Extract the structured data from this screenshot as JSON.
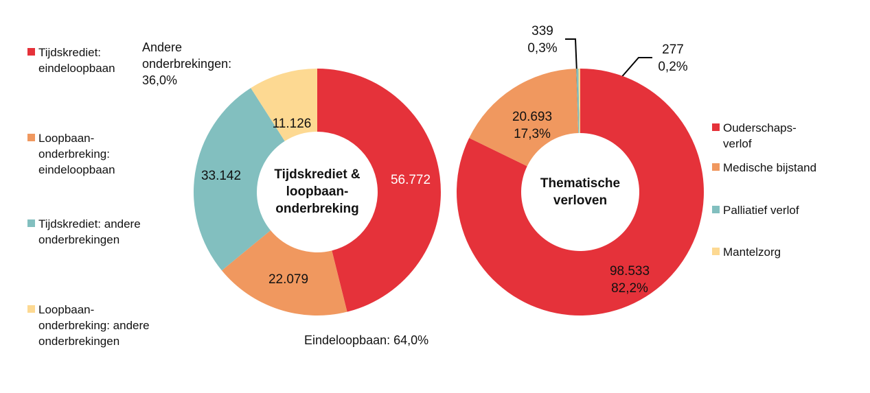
{
  "chart_data": [
    {
      "type": "pie",
      "center_label": "Tijdskrediet & loopbaan-onderbreking",
      "legend": "left",
      "categories": [
        "Tijdskrediet: eindeloopbaan",
        "Loopbaan-onderbreking: eindeloopbaan",
        "Tijdskrediet: andere onderbrekingen",
        "Loopbaan-onderbreking: andere onderbrekingen"
      ],
      "values": [
        56772,
        22079,
        33142,
        11126
      ],
      "value_labels": [
        "56.772",
        "22.079",
        "33.142",
        "11.126"
      ],
      "colors": [
        "#e5323a",
        "#f0985f",
        "#82bfbf",
        "#fdd992"
      ],
      "annotations": [
        "Andere onderbrekingen: 36,0%",
        "Eindeloopbaan: 64,0%"
      ]
    },
    {
      "type": "pie",
      "center_label": "Thematische verloven",
      "legend": "right",
      "categories": [
        "Ouderschaps-verlof",
        "Medische bijstand",
        "Palliatief verlof",
        "Mantelzorg"
      ],
      "values": [
        98533,
        20693,
        339,
        277
      ],
      "value_labels": [
        "98.533",
        "20.693",
        "339",
        "277"
      ],
      "percent_labels": [
        "82,2%",
        "17,3%",
        "0,3%",
        "0,2%"
      ],
      "colors": [
        "#e5323a",
        "#f0985f",
        "#82bfbf",
        "#fdd992"
      ]
    }
  ]
}
